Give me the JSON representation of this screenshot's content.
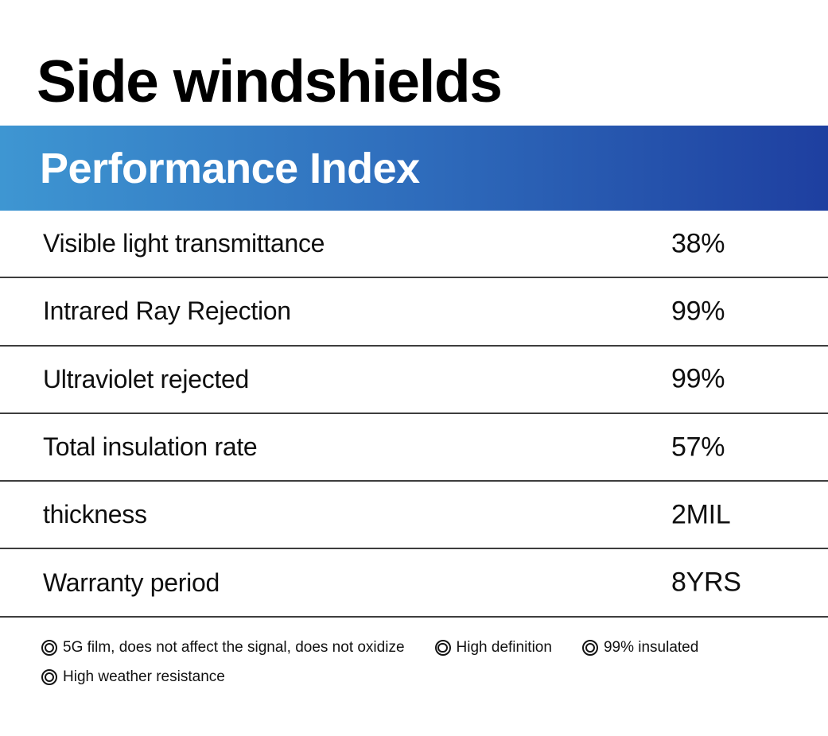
{
  "title": "Side windshields",
  "banner": {
    "heading": "Performance Index",
    "gradient_left_color": "#3E96D2",
    "gradient_right_color": "#1E3FA0",
    "text_color": "#FFFFFF"
  },
  "table": {
    "rows": [
      {
        "label": "Visible light transmittance",
        "value": "38%"
      },
      {
        "label": "Intrared Ray Rejection",
        "value": "99%"
      },
      {
        "label": "Ultraviolet rejected",
        "value": "99%"
      },
      {
        "label": "Total insulation rate",
        "value": "57%"
      },
      {
        "label": "thickness",
        "value": "2MIL"
      },
      {
        "label": "Warranty period",
        "value": "8YRS"
      }
    ]
  },
  "features": {
    "bullet_icon": "double-ring-icon",
    "items": [
      "5G film, does not affect the signal, does not oxidize",
      "High definition",
      "99% insulated",
      "High weather resistance"
    ]
  }
}
